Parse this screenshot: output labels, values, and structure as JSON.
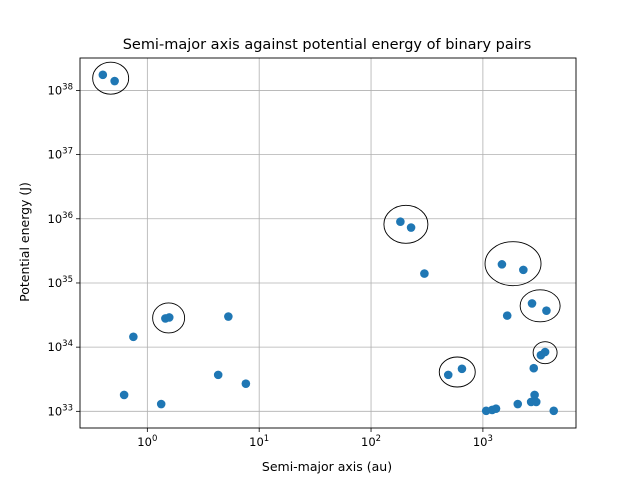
{
  "chart_data": {
    "type": "scatter",
    "title": "Semi-major axis against potential energy of binary pairs",
    "xlabel": "Semi-major axis (au)",
    "ylabel": "Potential energy (J)",
    "xscale": "log",
    "yscale": "log",
    "xlim": [
      0.25,
      6800
    ],
    "ylim": [
      5.5e+32,
      3.2e+38
    ],
    "grid": true,
    "marker_color": "#1f77b4",
    "x_ticks": [
      {
        "value": 1,
        "base": "10",
        "exp": "0"
      },
      {
        "value": 10,
        "base": "10",
        "exp": "1"
      },
      {
        "value": 100,
        "base": "10",
        "exp": "2"
      },
      {
        "value": 1000,
        "base": "10",
        "exp": "3"
      }
    ],
    "y_ticks": [
      {
        "value": 1e+33,
        "base": "10",
        "exp": "33"
      },
      {
        "value": 1e+34,
        "base": "10",
        "exp": "34"
      },
      {
        "value": 1e+35,
        "base": "10",
        "exp": "35"
      },
      {
        "value": 1e+36,
        "base": "10",
        "exp": "36"
      },
      {
        "value": 1e+37,
        "base": "10",
        "exp": "37"
      },
      {
        "value": 1e+38,
        "base": "10",
        "exp": "38"
      }
    ],
    "points": [
      {
        "x": 0.4,
        "y": 1.75e+38
      },
      {
        "x": 0.51,
        "y": 1.4e+38
      },
      {
        "x": 0.62,
        "y": 1.8e+33
      },
      {
        "x": 0.75,
        "y": 1.45e+34
      },
      {
        "x": 1.33,
        "y": 1.3e+33
      },
      {
        "x": 1.45,
        "y": 2.8e+34
      },
      {
        "x": 1.57,
        "y": 2.9e+34
      },
      {
        "x": 4.3,
        "y": 3.7e+33
      },
      {
        "x": 5.3,
        "y": 3e+34
      },
      {
        "x": 7.6,
        "y": 2.7e+33
      },
      {
        "x": 183,
        "y": 9e+35
      },
      {
        "x": 228,
        "y": 7.3e+35
      },
      {
        "x": 300,
        "y": 1.4e+35
      },
      {
        "x": 490,
        "y": 3.7e+33
      },
      {
        "x": 650,
        "y": 4.6e+33
      },
      {
        "x": 1070,
        "y": 1.02e+33
      },
      {
        "x": 1210,
        "y": 1.05e+33
      },
      {
        "x": 1310,
        "y": 1.1e+33
      },
      {
        "x": 1480,
        "y": 1.95e+35
      },
      {
        "x": 1650,
        "y": 3.1e+34
      },
      {
        "x": 2050,
        "y": 1.3e+33
      },
      {
        "x": 2300,
        "y": 1.6e+35
      },
      {
        "x": 2700,
        "y": 1.4e+33
      },
      {
        "x": 2750,
        "y": 4.8e+34
      },
      {
        "x": 2850,
        "y": 4.7e+33
      },
      {
        "x": 2900,
        "y": 1.8e+33
      },
      {
        "x": 3000,
        "y": 1.4e+33
      },
      {
        "x": 3300,
        "y": 7.5e+33
      },
      {
        "x": 3600,
        "y": 8.4e+33
      },
      {
        "x": 3700,
        "y": 3.7e+34
      },
      {
        "x": 4300,
        "y": 1.02e+33
      }
    ],
    "annotations": [
      {
        "type": "circle",
        "x": 0.47,
        "y": 1.55e+38
      },
      {
        "type": "circle",
        "x": 1.55,
        "y": 2.85e+34
      },
      {
        "type": "circle",
        "x": 205,
        "y": 8.2e+35
      },
      {
        "type": "circle",
        "x": 590,
        "y": 4.1e+33
      },
      {
        "type": "circle",
        "x": 1860,
        "y": 2e+35
      },
      {
        "type": "circle",
        "x": 3250,
        "y": 4.4e+34
      },
      {
        "type": "circle",
        "x": 3600,
        "y": 8.2e+33
      }
    ]
  }
}
